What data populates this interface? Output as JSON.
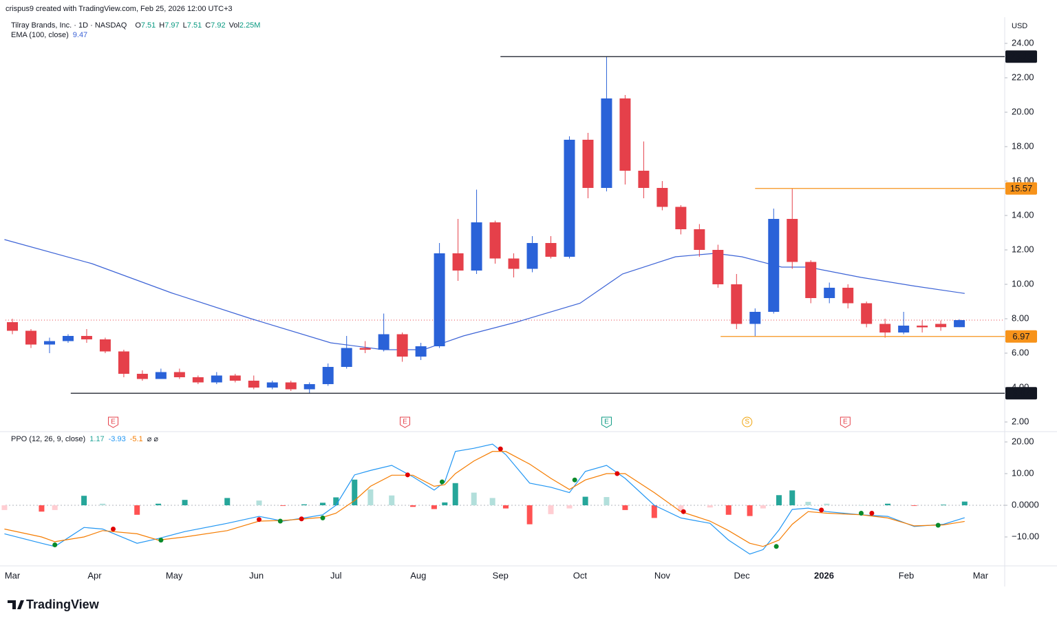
{
  "header": {
    "attribution": "crispus9 created with TradingView.com, Feb 25, 2026 12:00 UTC+3",
    "symbol": "Tilray Brands, Inc. · 1D · NASDAQ",
    "ohlc_labels": [
      "O",
      "H",
      "L",
      "C"
    ],
    "volume_label": "Vol",
    "volume": "2.25M",
    "currency": "USD",
    "brand": "TradingView",
    "ppo_extra": "⌀ ⌀"
  },
  "chart_data": [
    {
      "type": "candlestick",
      "up_color": "#2a62d8",
      "down_color": "#e5404a",
      "price_line_color": "#e5404a",
      "candles": {
        "x": [
          0,
          7,
          14,
          21,
          28,
          35,
          42,
          49,
          56,
          63,
          70,
          77,
          84,
          91,
          98,
          105,
          112,
          119,
          126,
          133,
          140,
          147,
          154,
          161,
          168,
          175,
          182,
          189,
          196,
          203,
          210,
          217,
          224,
          231,
          238,
          245,
          252,
          259,
          266,
          273,
          280,
          287,
          294,
          301,
          308,
          315,
          322,
          329,
          336,
          343,
          350,
          357
        ],
        "open": [
          7.8,
          7.3,
          6.5,
          6.7,
          7.0,
          6.8,
          6.1,
          4.8,
          4.5,
          4.9,
          4.6,
          4.3,
          4.7,
          4.4,
          4.0,
          4.3,
          3.9,
          4.2,
          5.2,
          6.3,
          6.2,
          7.1,
          5.8,
          6.4,
          11.8,
          10.8,
          13.6,
          11.5,
          10.9,
          12.4,
          11.6,
          18.4,
          15.6,
          20.8,
          16.6,
          15.6,
          14.5,
          13.2,
          12.0,
          10.0,
          7.7,
          8.4,
          13.8,
          11.3,
          9.2,
          9.8,
          8.9,
          7.7,
          7.2,
          7.6,
          7.7,
          7.51
        ],
        "high": [
          8.0,
          7.4,
          6.9,
          7.1,
          7.4,
          6.9,
          6.2,
          5.0,
          5.1,
          5.1,
          4.7,
          4.9,
          4.8,
          4.7,
          4.4,
          4.4,
          4.3,
          5.4,
          7.0,
          6.7,
          8.3,
          7.2,
          6.6,
          12.4,
          13.8,
          15.5,
          13.7,
          11.8,
          12.8,
          12.8,
          18.6,
          18.8,
          23.23,
          21.0,
          18.3,
          16.0,
          14.6,
          13.5,
          12.3,
          10.6,
          8.6,
          14.4,
          15.57,
          11.4,
          10.1,
          10.0,
          9.0,
          8.0,
          8.4,
          7.9,
          7.9,
          7.97
        ],
        "low": [
          7.1,
          6.3,
          6.0,
          6.6,
          6.6,
          6.0,
          4.6,
          4.4,
          4.5,
          4.5,
          4.2,
          4.2,
          4.3,
          3.9,
          3.9,
          3.8,
          3.67,
          4.1,
          5.1,
          6.0,
          6.1,
          5.5,
          5.6,
          6.3,
          10.2,
          10.6,
          11.2,
          10.4,
          10.7,
          11.5,
          11.5,
          15.0,
          15.4,
          15.8,
          15.0,
          14.3,
          12.9,
          11.6,
          9.8,
          7.4,
          6.97,
          8.3,
          10.9,
          8.9,
          8.9,
          8.6,
          7.5,
          6.9,
          7.1,
          7.2,
          7.3,
          7.51
        ],
        "close": [
          7.3,
          6.5,
          6.7,
          7.0,
          6.8,
          6.1,
          4.8,
          4.5,
          4.9,
          4.6,
          4.3,
          4.7,
          4.4,
          4.0,
          4.3,
          3.9,
          4.2,
          5.2,
          6.3,
          6.2,
          7.1,
          5.8,
          6.4,
          11.8,
          10.8,
          13.6,
          11.5,
          10.9,
          12.4,
          11.6,
          18.4,
          15.6,
          20.8,
          16.6,
          15.6,
          14.5,
          13.2,
          12.0,
          10.0,
          7.7,
          8.4,
          13.8,
          11.3,
          9.2,
          9.8,
          8.9,
          7.7,
          7.2,
          7.6,
          7.5,
          7.51,
          7.92
        ]
      },
      "overlays": [
        {
          "name": "EMA (100, close)",
          "color": "#3c63d6",
          "x": [
            -3,
            30,
            60,
            90,
            120,
            140,
            155,
            170,
            190,
            214,
            230,
            250,
            265,
            275,
            290,
            300,
            320,
            340,
            359
          ],
          "values": [
            12.6,
            11.2,
            9.5,
            8.0,
            6.6,
            6.2,
            6.2,
            7.0,
            7.8,
            8.9,
            10.6,
            11.6,
            11.8,
            11.6,
            11.0,
            11.0,
            10.4,
            9.9,
            9.47
          ]
        }
      ],
      "hlines": [
        {
          "value": 23.23,
          "x": 184,
          "color": "#131722"
        },
        {
          "value": 15.57,
          "x": 280,
          "color": "#f7931a"
        },
        {
          "value": 6.97,
          "x": 267,
          "color": "#f7931a"
        },
        {
          "value": 3.67,
          "x": 22,
          "color": "#131722"
        }
      ],
      "events": {
        "x": [
          38,
          148,
          224,
          277,
          314
        ],
        "labels": [
          "E",
          "E",
          "E",
          "S",
          "E"
        ],
        "colors": [
          "#e5404a",
          "#e5404a",
          "#089981",
          "#f0a30a",
          "#e5404a"
        ]
      },
      "xlim": [
        -2.6,
        374.1
      ],
      "xticks": [
        {
          "value": 0,
          "label": "Mar"
        },
        {
          "value": 31,
          "label": "Apr"
        },
        {
          "value": 61,
          "label": "May"
        },
        {
          "value": 92,
          "label": "Jun"
        },
        {
          "value": 122,
          "label": "Jul"
        },
        {
          "value": 153,
          "label": "Aug"
        },
        {
          "value": 184,
          "label": "Sep"
        },
        {
          "value": 214,
          "label": "Oct"
        },
        {
          "value": 245,
          "label": "Nov"
        },
        {
          "value": 275,
          "label": "Dec"
        },
        {
          "value": 306,
          "label": "2026",
          "bold": true
        },
        {
          "value": 337,
          "label": "Feb"
        },
        {
          "value": 365,
          "label": "Mar"
        }
      ],
      "ylim": [
        1.52,
        25.52
      ],
      "yticks": [
        {
          "value": 2,
          "label": "2.00"
        },
        {
          "value": 4,
          "label": "4.00"
        },
        {
          "value": 6,
          "label": "6.00"
        },
        {
          "value": 8,
          "label": "8.00"
        },
        {
          "value": 10,
          "label": "10.00"
        },
        {
          "value": 12,
          "label": "12.00"
        },
        {
          "value": 14,
          "label": "14.00"
        },
        {
          "value": 16,
          "label": "16.00"
        },
        {
          "value": 18,
          "label": "18.00"
        },
        {
          "value": 20,
          "label": "20.00"
        },
        {
          "value": 22,
          "label": "22.00"
        },
        {
          "value": 24,
          "label": "24.00"
        }
      ]
    },
    {
      "type": "ppo",
      "name": "PPO (12, 26, 9, close)",
      "x": [
        -3,
        11,
        16,
        27,
        34,
        47,
        55,
        65,
        81,
        93,
        102,
        110,
        117,
        122,
        129,
        135,
        143,
        151,
        159,
        163,
        167,
        174,
        181,
        186,
        195,
        203,
        210,
        216,
        224,
        231,
        242,
        252,
        263,
        270,
        278,
        283,
        289,
        294,
        300,
        307,
        320,
        330,
        340,
        351,
        359
      ],
      "series": [
        {
          "kind": "histogram",
          "colors": [
            "#26a69a",
            "#b2dfdb",
            "#ff5252",
            "#ffcdd2"
          ],
          "values": [
            -1.5,
            -2,
            -1.5,
            3,
            0.5,
            -3,
            0.5,
            1.7,
            2.3,
            1.5,
            -0.2,
            0.3,
            0.8,
            2.5,
            8.1,
            5,
            3.1,
            -0.5,
            -1.2,
            0.9,
            7,
            4,
            2.3,
            -1,
            -6,
            -2.8,
            -1,
            2.7,
            2.6,
            -1.5,
            -4,
            -2,
            -0.7,
            -3,
            -3.4,
            -1,
            3.2,
            4.7,
            1.1,
            0.5,
            0,
            0.5,
            -0.2,
            0.2,
            1.17
          ]
        },
        {
          "kind": "line",
          "color": "#2196f3",
          "values": [
            -9,
            -12,
            -13,
            -7,
            -7.5,
            -12,
            -10.5,
            -8.3,
            -5.7,
            -3.5,
            -5,
            -4,
            -3,
            0,
            9.6,
            11,
            12.6,
            9,
            4.8,
            7.4,
            17,
            18,
            19.3,
            16,
            7,
            5.7,
            4,
            10.7,
            12.6,
            8.5,
            0,
            -4,
            -5.7,
            -11,
            -15.4,
            -14,
            -7.8,
            -1.3,
            -0.9,
            -2,
            -3,
            -3.5,
            -6.7,
            -6,
            -3.93
          ]
        },
        {
          "kind": "line",
          "color": "#f57c00",
          "values": [
            -7.5,
            -10,
            -11.5,
            -10,
            -8,
            -9,
            -11,
            -10,
            -8,
            -5,
            -4.8,
            -4.3,
            -3.8,
            -2.5,
            1.5,
            6,
            9.5,
            9.5,
            6,
            6.5,
            10,
            14,
            17,
            17,
            13,
            8.5,
            5,
            8,
            10,
            10,
            4,
            -2,
            -5,
            -8,
            -12,
            -13,
            -11,
            -6,
            -2,
            -2.5,
            -3,
            -4,
            -6.5,
            -6.2,
            -5.1
          ]
        }
      ],
      "crossovers": {
        "x": [
          16,
          38,
          56,
          93,
          101,
          109,
          117,
          149,
          162,
          184,
          212,
          228,
          253,
          288,
          305,
          320,
          324,
          349
        ],
        "values": [
          -12.5,
          -7.5,
          -11,
          -4.5,
          -5,
          -4.3,
          -4,
          9.6,
          7.4,
          17.8,
          8,
          10,
          -2,
          -13,
          -1.5,
          -2.5,
          -2.5,
          -6.3
        ],
        "colors": [
          "#0a8a2a",
          "#e00000",
          "#0a8a2a",
          "#e00000",
          "#0a8a2a",
          "#e00000",
          "#0a8a2a",
          "#e00000",
          "#0a8a2a",
          "#e00000",
          "#0a8a2a",
          "#e00000",
          "#e00000",
          "#0a8a2a",
          "#e00000",
          "#0a8a2a",
          "#e00000",
          "#0a8a2a"
        ]
      },
      "ylim": [
        -19.13,
        23.04
      ],
      "yticks": [
        {
          "value": 20,
          "label": "20.00"
        },
        {
          "value": 10,
          "label": "10.00"
        },
        {
          "value": 0,
          "label": "0.0000"
        },
        {
          "value": -10,
          "label": "−10.00"
        }
      ]
    }
  ]
}
